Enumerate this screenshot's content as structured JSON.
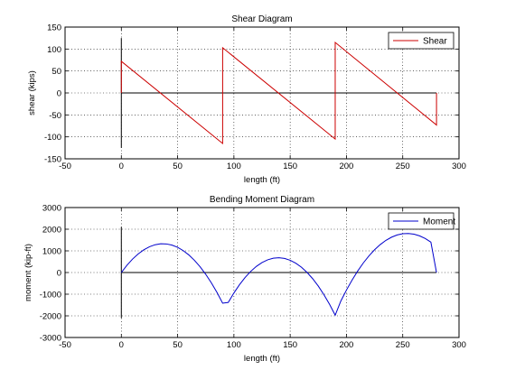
{
  "chart_data": [
    {
      "type": "line",
      "title": "Shear Diagram",
      "xlabel": "length (ft)",
      "ylabel": "shear (kips)",
      "xlim": [
        -50,
        300
      ],
      "ylim": [
        -150,
        150
      ],
      "xticks": [
        -50,
        0,
        50,
        100,
        150,
        200,
        250,
        300
      ],
      "yticks": [
        -150,
        -100,
        -50,
        0,
        50,
        100,
        150
      ],
      "grid": true,
      "legend": "top-right",
      "series": [
        {
          "name": "Shear",
          "color": "#cc0000",
          "x": [
            0,
            0,
            90,
            90,
            190,
            190,
            280,
            280
          ],
          "y": [
            0,
            72,
            -115,
            103,
            -105,
            115,
            -73,
            0
          ]
        }
      ],
      "reference_lines": {
        "horizontal": {
          "x": [
            0,
            280
          ],
          "y": 0
        },
        "vertical": {
          "x": 0,
          "y": [
            -125,
            125
          ]
        }
      }
    },
    {
      "type": "line",
      "title": "Bending Moment Diagram",
      "xlabel": "length (ft)",
      "ylabel": "moment (kip-ft)",
      "xlim": [
        -50,
        300
      ],
      "ylim": [
        -3000,
        3000
      ],
      "xticks": [
        -50,
        0,
        50,
        100,
        150,
        200,
        250,
        300
      ],
      "yticks": [
        -3000,
        -2000,
        -1000,
        0,
        1000,
        2000,
        3000
      ],
      "grid": true,
      "legend": "top-right",
      "series": [
        {
          "name": "Moment",
          "color": "#0000cc",
          "x": [
            0,
            5,
            10,
            15,
            20,
            25,
            30,
            35,
            40,
            45,
            50,
            55,
            60,
            65,
            70,
            75,
            80,
            85,
            90,
            95,
            100,
            105,
            110,
            115,
            120,
            125,
            130,
            135,
            140,
            145,
            150,
            155,
            160,
            165,
            170,
            175,
            180,
            185,
            190,
            195,
            200,
            205,
            210,
            215,
            220,
            225,
            230,
            235,
            240,
            245,
            250,
            255,
            260,
            265,
            270,
            275,
            280
          ],
          "y": [
            0,
            335,
            618,
            847,
            1023,
            1146,
            1215,
            1232,
            1195,
            1105,
            962,
            765,
            515,
            212,
            -144,
            -553,
            -1015,
            -1530,
            -1850,
            -1393,
            -965,
            -565,
            -193,
            152,
            469,
            758,
            1020,
            1254,
            1460,
            1000,
            1100,
            1090,
            950,
            880,
            550,
            180,
            -230,
            -900,
            -1800,
            -1256,
            -739,
            -252,
            207,
            638,
            1000,
            1100,
            1200,
            1253,
            1260,
            1247,
            1204,
            1124,
            999,
            819,
            574,
            304,
            0
          ]
        }
      ],
      "reference_lines": {
        "horizontal": {
          "x": [
            0,
            280
          ],
          "y": 0
        },
        "vertical": {
          "x": 0,
          "y": [
            -2100,
            2100
          ]
        }
      }
    }
  ]
}
